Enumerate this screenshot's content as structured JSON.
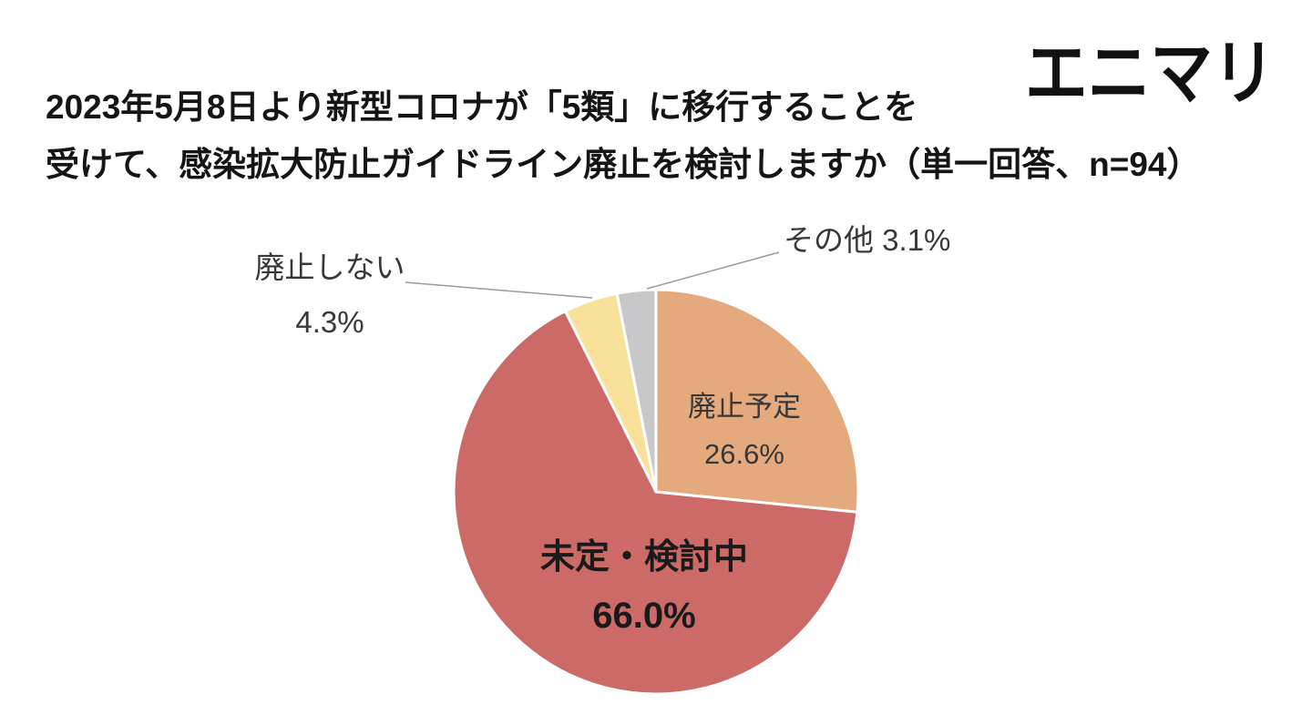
{
  "header": {
    "title_line1": "2023年5月8日より新型コロナが「5類」に移行することを",
    "title_line2": "受けて、感染拡大防止ガイドライン廃止を検討しますか（単一回答、n=94）",
    "logo": "エニマリ"
  },
  "chart_data": {
    "type": "pie",
    "title": "2023年5月8日より新型コロナが「5類」に移行することを受けて、感染拡大防止ガイドライン廃止を検討しますか",
    "subtitle": "単一回答、n=94",
    "n": 94,
    "start_angle_deg": 0,
    "direction": "clockwise",
    "slices": [
      {
        "label": "廃止予定",
        "slug": "haishi-yotei",
        "value_pct": 26.6,
        "pct_display": "26.6%",
        "color": "#E5A97E",
        "label_position": "inside"
      },
      {
        "label": "未定・検討中",
        "slug": "mitei-kentochu",
        "value_pct": 66.0,
        "pct_display": "66.0%",
        "color": "#CB6A66",
        "label_position": "inside",
        "emphasis": true
      },
      {
        "label": "廃止しない",
        "slug": "haishi-shinai",
        "value_pct": 4.3,
        "pct_display": "4.3%",
        "color": "#F8E29B",
        "label_position": "outside-left"
      },
      {
        "label": "その他",
        "slug": "sonota",
        "value_pct": 3.1,
        "pct_display": "3.1%",
        "color": "#C8C8CA",
        "label_position": "outside-top"
      }
    ],
    "leader_line_color": "#9a9a9a"
  }
}
